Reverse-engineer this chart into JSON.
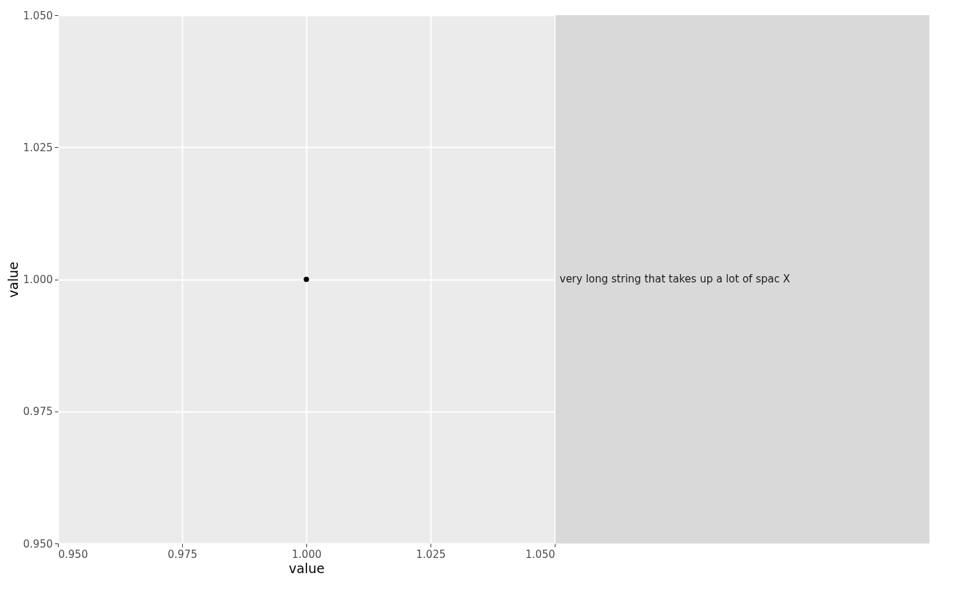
{
  "chart_data": {
    "type": "scatter",
    "xlabel": "value",
    "ylabel": "value",
    "x": [
      1.0
    ],
    "values": [
      1.0
    ],
    "color": "#000000",
    "marker": "circle",
    "grid": true,
    "xlim": [
      0.95,
      1.05
    ],
    "xticks": [
      {
        "value": 0.95,
        "label": "0.950"
      },
      {
        "value": 0.975,
        "label": "0.975"
      },
      {
        "value": 1.0,
        "label": "1.000"
      },
      {
        "value": 1.025,
        "label": "1.025"
      },
      {
        "value": 1.05,
        "label": "1.050"
      }
    ],
    "ylim": [
      0.95,
      1.05
    ],
    "yticks": [
      {
        "value": 0.95,
        "label": "0.950"
      },
      {
        "value": 0.975,
        "label": "0.975"
      },
      {
        "value": 1.0,
        "label": "1.000"
      },
      {
        "value": 1.025,
        "label": "1.025"
      },
      {
        "value": 1.05,
        "label": "1.050"
      }
    ],
    "annotations": [
      "very long string that takes up a lot of spac X"
    ]
  }
}
